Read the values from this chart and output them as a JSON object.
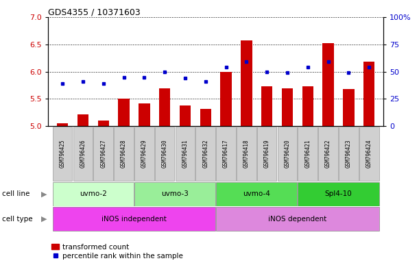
{
  "title": "GDS4355 / 10371603",
  "samples": [
    "GSM796425",
    "GSM796426",
    "GSM796427",
    "GSM796428",
    "GSM796429",
    "GSM796430",
    "GSM796431",
    "GSM796432",
    "GSM796417",
    "GSM796418",
    "GSM796419",
    "GSM796420",
    "GSM796421",
    "GSM796422",
    "GSM796423",
    "GSM796424"
  ],
  "bar_values": [
    5.05,
    5.22,
    5.1,
    5.5,
    5.42,
    5.7,
    5.38,
    5.32,
    6.0,
    6.57,
    5.73,
    5.7,
    5.73,
    6.52,
    5.68,
    6.18
  ],
  "dot_values": [
    5.78,
    5.82,
    5.78,
    5.9,
    5.9,
    6.0,
    5.88,
    5.82,
    6.08,
    6.18,
    6.0,
    5.98,
    6.08,
    6.18,
    5.98,
    6.08
  ],
  "bar_color": "#cc0000",
  "dot_color": "#0000cc",
  "ylim_left": [
    5.0,
    7.0
  ],
  "ylim_right": [
    0,
    100
  ],
  "yticks_left": [
    5.0,
    5.5,
    6.0,
    6.5,
    7.0
  ],
  "yticks_right": [
    0,
    25,
    50,
    75,
    100
  ],
  "cell_lines": [
    {
      "label": "uvmo-2",
      "start": 0,
      "end": 3,
      "color": "#ccffcc"
    },
    {
      "label": "uvmo-3",
      "start": 4,
      "end": 7,
      "color": "#99ee99"
    },
    {
      "label": "uvmo-4",
      "start": 8,
      "end": 11,
      "color": "#55dd55"
    },
    {
      "label": "Spl4-10",
      "start": 12,
      "end": 15,
      "color": "#33cc33"
    }
  ],
  "cell_types": [
    {
      "label": "iNOS independent",
      "start": 0,
      "end": 7,
      "color": "#ee44ee"
    },
    {
      "label": "iNOS dependent",
      "start": 8,
      "end": 15,
      "color": "#dd88dd"
    }
  ],
  "legend_bar_label": "transformed count",
  "legend_dot_label": "percentile rank within the sample",
  "bar_width": 0.55,
  "plot_bg": "#ffffff",
  "grid_color": "#000000",
  "right_axis_color": "#0000cc",
  "left_axis_color": "#cc0000",
  "sample_box_color": "#d0d0d0",
  "sample_box_edge": "#999999"
}
